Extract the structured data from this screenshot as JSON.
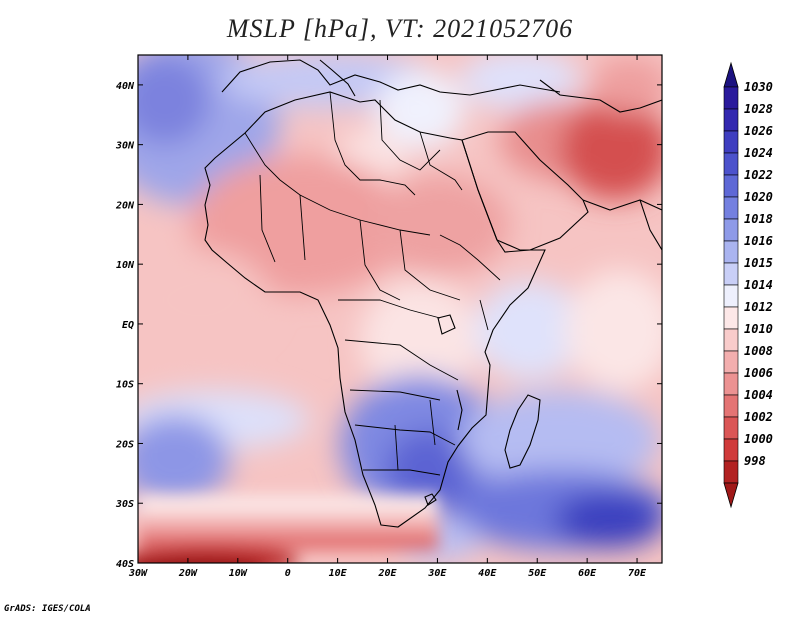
{
  "title": "MSLP [hPa], VT: 2021052706",
  "credit": "GrADS: IGES/COLA",
  "axes": {
    "lon_labels": [
      "30W",
      "20W",
      "10W",
      "0",
      "10E",
      "20E",
      "30E",
      "40E",
      "50E",
      "60E",
      "70E"
    ],
    "lat_labels": [
      "40N",
      "30N",
      "20N",
      "10N",
      "EQ",
      "10S",
      "20S",
      "30S",
      "40S"
    ]
  },
  "colorbar": {
    "levels": [
      "1030",
      "1028",
      "1026",
      "1024",
      "1022",
      "1020",
      "1018",
      "1016",
      "1015",
      "1014",
      "1012",
      "1010",
      "1008",
      "1006",
      "1004",
      "1002",
      "1000",
      "998"
    ],
    "colors": [
      "#2a1a9c",
      "#3328b0",
      "#3f3ec0",
      "#4c52cc",
      "#5e68d6",
      "#7480e0",
      "#8e9ae8",
      "#aab4f0",
      "#c9cff7",
      "#eef0fd",
      "#fde8e8",
      "#f9cccb",
      "#f3aeae",
      "#ec9292",
      "#e47474",
      "#db5656",
      "#d03a3a",
      "#b22222"
    ],
    "top_arrow_color": "#1c1280",
    "bottom_arrow_color": "#a01818"
  }
}
